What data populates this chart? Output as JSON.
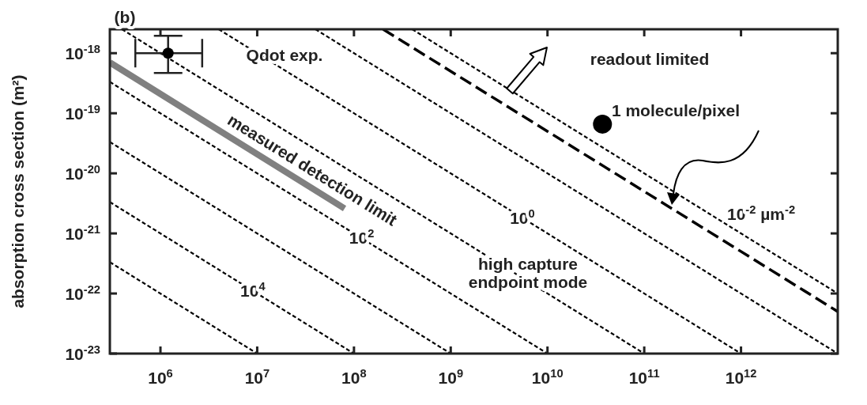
{
  "chart_data": {
    "type": "line",
    "log": "xy",
    "ylabel": "absorption cross section (m²)",
    "xlim": [
      300000,
      10000000000000
    ],
    "ylim": [
      1e-23,
      2.5e-18
    ],
    "xticks": [
      {
        "value": 1000000,
        "label": "10$^{6}$"
      },
      {
        "value": 10000000,
        "label": "10$^{7}$"
      },
      {
        "value": 100000000,
        "label": "10$^{8}$"
      },
      {
        "value": 1000000000,
        "label": "10$^{9}$"
      },
      {
        "value": 10000000000,
        "label": "10$^{10}$"
      },
      {
        "value": 100000000000,
        "label": "10$^{11}$"
      },
      {
        "value": 1000000000000,
        "label": "10$^{12}$"
      }
    ],
    "yticks": [
      {
        "value": 1e-23,
        "label": "10$^{-23}$"
      },
      {
        "value": 1e-22,
        "label": "10$^{-22}$"
      },
      {
        "value": 1e-21,
        "label": "10$^{-21}$"
      },
      {
        "value": 1e-20,
        "label": "10$^{-20}$"
      },
      {
        "value": 1e-19,
        "label": "10$^{-19}$"
      },
      {
        "value": 1e-18,
        "label": "10$^{-18}$"
      }
    ],
    "series": [
      {
        "color": "#000000",
        "line_style": "dotted",
        "x": [
          300000,
          10000000
        ],
        "values": [
          3.33e-22,
          1e-23
        ]
      },
      {
        "color": "#000000",
        "line_style": "dotted",
        "x": [
          300000,
          100000000
        ],
        "values": [
          3.33e-21,
          1e-23
        ]
      },
      {
        "color": "#000000",
        "line_style": "dotted",
        "x": [
          300000,
          1000000000
        ],
        "values": [
          3.33e-20,
          1e-23
        ]
      },
      {
        "color": "#000000",
        "line_style": "dotted",
        "x": [
          300000,
          10000000000
        ],
        "values": [
          3.33e-19,
          1e-23
        ]
      },
      {
        "color": "#000000",
        "line_style": "dotted",
        "x": [
          400000,
          100000000000
        ],
        "values": [
          2.5e-18,
          1e-23
        ]
      },
      {
        "color": "#000000",
        "line_style": "dotted",
        "x": [
          4000000,
          1000000000000
        ],
        "values": [
          2.5e-18,
          1e-23
        ]
      },
      {
        "color": "#000000",
        "line_style": "dotted",
        "x": [
          40000000,
          10000000000000
        ],
        "values": [
          2.5e-18,
          1e-23
        ]
      },
      {
        "color": "#000000",
        "line_style": "dashed",
        "x": [
          200000000,
          10000000000000
        ],
        "values": [
          2.5e-18,
          5e-23
        ]
      },
      {
        "color": "#000000",
        "line_style": "dotted",
        "x": [
          400000000,
          10000000000000
        ],
        "values": [
          2.5e-18,
          1e-22
        ]
      },
      {
        "color": "#808080",
        "line_style": "solid",
        "x": [
          300000,
          80000000
        ],
        "values": [
          7e-19,
          2.6e-21
        ]
      },
      {
        "type": "scatter",
        "color": "#000000",
        "marker": "circle",
        "x": [
          1200000
        ],
        "values": [
          1e-18
        ],
        "errors": [
          [
            4.7e-19,
            1.95e-18
          ]
        ],
        "xerrors": [
          [
            550000,
            2700000
          ]
        ]
      },
      {
        "type": "scatter",
        "color": "#000000",
        "marker": "circle",
        "x": [
          37000000000
        ],
        "values": [
          6.6e-20
        ]
      }
    ],
    "annotations": [
      "measured detection limit",
      "(b)",
      "Qdot exp.",
      "readout limited",
      "1 molecule/pixel",
      {
        "text": "10$^{4}$",
        "x": 9000000,
        "y": 1.1e-22
      },
      {
        "text": "10$^{2}$",
        "x": 120000000,
        "y": 8.3e-22
      },
      {
        "text": "10$^{0}$",
        "x": 5500000000,
        "y": 1.8e-21
      },
      "10$^{-2}$ µm$^{-2}$",
      "high capture\nendpoint mode"
    ]
  }
}
